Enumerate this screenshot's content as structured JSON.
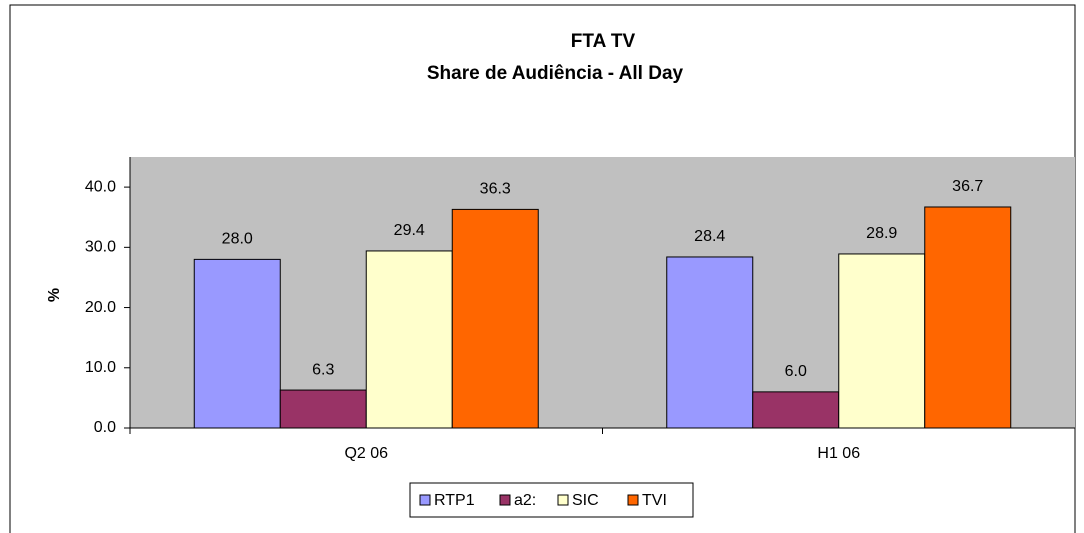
{
  "chart_data": {
    "type": "bar",
    "title": "FTA TV",
    "subtitle": "Share de Audiência - All Day",
    "y_label": "%",
    "categories": [
      "Q2 06",
      "H1 06"
    ],
    "series": [
      {
        "name": "RTP1",
        "color": "#9999ff",
        "values": [
          28,
          28.4
        ],
        "value_labels": [
          "28.0",
          "28.4"
        ]
      },
      {
        "name": "a2:",
        "color": "#993366",
        "values": [
          6.3,
          6
        ],
        "value_labels": [
          "6.3",
          "6.0"
        ]
      },
      {
        "name": "SIC",
        "color": "#ffffcc",
        "values": [
          29.4,
          28.9
        ],
        "value_labels": [
          "29.4",
          "28.9"
        ]
      },
      {
        "name": "TVI",
        "color": "#ff6600",
        "values": [
          36.3,
          36.7
        ],
        "value_labels": [
          "36.3",
          "36.7"
        ]
      }
    ],
    "ylim": [
      0,
      45
    ],
    "yticks": [
      {
        "value": 0,
        "label": "0.0"
      },
      {
        "value": 10,
        "label": "10.0"
      },
      {
        "value": 20,
        "label": "20.0"
      },
      {
        "value": 30,
        "label": "30.0"
      },
      {
        "value": 40,
        "label": "40.0"
      }
    ],
    "plot_background": "#c0c0c0",
    "legend": "bottom"
  }
}
